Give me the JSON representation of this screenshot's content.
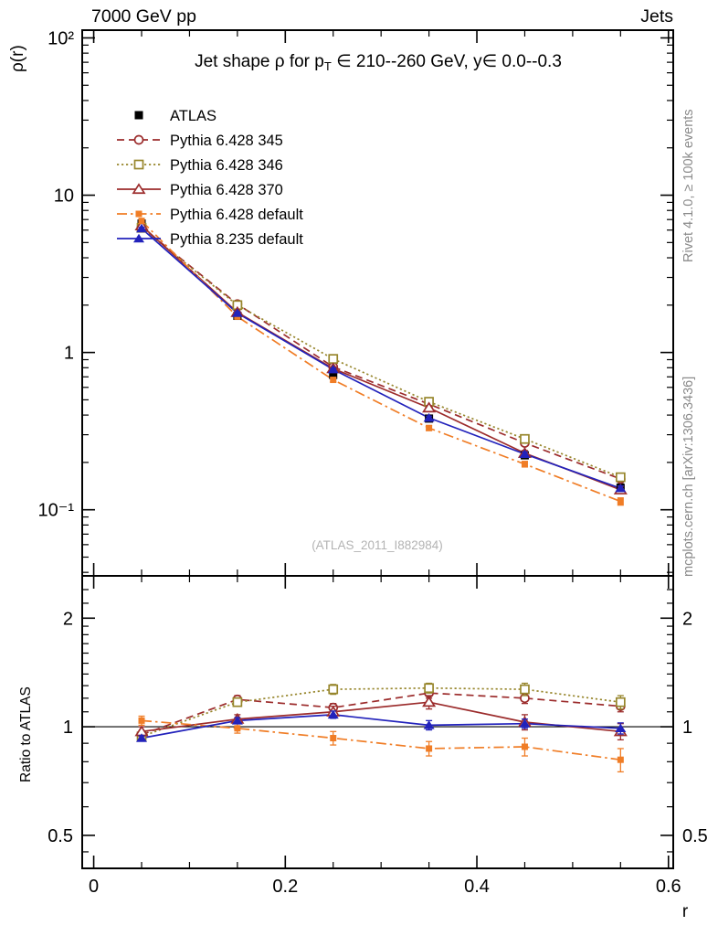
{
  "header": {
    "left": "7000 GeV pp",
    "right": "Jets"
  },
  "side_notes": {
    "rivet": "Rivet 4.1.0, ≥ 100k events",
    "mcplots": "mcplots.cern.ch [arXiv:1306.3436]"
  },
  "watermark": "(ATLAS_2011_I882984)",
  "chart_data": {
    "type": "line",
    "title": {
      "pre": "Jet shape ρ for p",
      "sub": "T",
      "post": " ∈ 210--260 GeV, y∈ 0.0--0.3"
    },
    "xlabel": "r",
    "ylabel_top": "ρ(r)",
    "ylabel_bottom": "Ratio to ATLAS",
    "x_range": [
      -0.012,
      0.605
    ],
    "y_range_top": [
      0.038,
      112
    ],
    "y_range_bottom": [
      0.405,
      2.62
    ],
    "x_ticks": [
      {
        "v": 0,
        "label": "0"
      },
      {
        "v": 0.2,
        "label": "0.2"
      },
      {
        "v": 0.4,
        "label": "0.4"
      },
      {
        "v": 0.6,
        "label": "0.6"
      }
    ],
    "x_minor_step": 0.05,
    "y_ticks_top": [
      {
        "v": 100,
        "label": "10²"
      },
      {
        "v": 10,
        "label": "10"
      },
      {
        "v": 1,
        "label": "1"
      },
      {
        "v": 0.1,
        "label": "10⁻¹"
      }
    ],
    "y_ticks_bottom": [
      {
        "v": 2,
        "label": "2"
      },
      {
        "v": 1,
        "label": "1"
      },
      {
        "v": 0.5,
        "label": "0.5"
      }
    ],
    "y_minor_bottom": [
      0.45,
      0.6,
      0.7,
      0.8,
      0.9,
      1.1,
      1.2,
      1.3,
      1.4,
      1.5,
      1.6,
      1.7,
      1.8,
      1.9,
      2.2,
      2.4
    ],
    "x": [
      0.05,
      0.15,
      0.25,
      0.35,
      0.45,
      0.55
    ],
    "series": [
      {
        "name": "ATLAS",
        "color": "#000000",
        "marker": "square-filled",
        "size": 9,
        "line": "none",
        "values": [
          6.6,
          1.71,
          0.72,
          0.38,
          0.222,
          0.138
        ],
        "errors": [
          0.25,
          0.07,
          0.03,
          0.016,
          0.011,
          0.008
        ],
        "ratio": null,
        "ratio_err": null
      },
      {
        "name": "Pythia 6.428 345",
        "color": "#9c2c2c",
        "marker": "circle-open",
        "size": 9,
        "line": "dashed",
        "values": [
          6.27,
          2.03,
          0.81,
          0.47,
          0.266,
          0.157
        ],
        "errors": [
          0.12,
          0.04,
          0.02,
          0.013,
          0.009,
          0.007
        ],
        "ratio": [
          0.95,
          1.19,
          1.13,
          1.24,
          1.2,
          1.14
        ],
        "ratio_err": [
          0.02,
          0.03,
          0.03,
          0.04,
          0.04,
          0.04
        ]
      },
      {
        "name": "Pythia 6.428 346",
        "color": "#97862c",
        "marker": "square-open",
        "size": 9,
        "line": "dotted",
        "values": [
          6.2,
          2.0,
          0.91,
          0.486,
          0.282,
          0.161
        ],
        "errors": [
          0.12,
          0.04,
          0.02,
          0.013,
          0.009,
          0.007
        ],
        "ratio": [
          0.94,
          1.17,
          1.27,
          1.28,
          1.27,
          1.17
        ],
        "ratio_err": [
          0.02,
          0.03,
          0.04,
          0.04,
          0.05,
          0.05
        ]
      },
      {
        "name": "Pythia 6.428 370",
        "color": "#9c2c2c",
        "marker": "triangle-open",
        "size": 11,
        "line": "solid",
        "values": [
          6.4,
          1.8,
          0.79,
          0.445,
          0.229,
          0.134
        ],
        "errors": [
          0.12,
          0.04,
          0.02,
          0.013,
          0.009,
          0.007
        ],
        "ratio": [
          0.97,
          1.05,
          1.1,
          1.17,
          1.03,
          0.97
        ],
        "ratio_err": [
          0.03,
          0.03,
          0.04,
          0.05,
          0.05,
          0.05
        ]
      },
      {
        "name": "Pythia 6.428 default",
        "color": "#f07d26",
        "marker": "square-filled",
        "size": 7,
        "line": "dashdot",
        "values": [
          6.86,
          1.69,
          0.67,
          0.331,
          0.195,
          0.113
        ],
        "errors": [
          0.12,
          0.04,
          0.02,
          0.012,
          0.008,
          0.006
        ],
        "ratio": [
          1.04,
          0.99,
          0.93,
          0.87,
          0.88,
          0.81
        ],
        "ratio_err": [
          0.03,
          0.03,
          0.04,
          0.04,
          0.05,
          0.06
        ]
      },
      {
        "name": "Pythia 8.235 default",
        "color": "#2222bb",
        "marker": "triangle-filled",
        "size": 11,
        "line": "solid",
        "values": [
          6.14,
          1.78,
          0.78,
          0.384,
          0.226,
          0.137
        ],
        "errors": [
          0.1,
          0.03,
          0.015,
          0.01,
          0.007,
          0.005
        ],
        "ratio": [
          0.93,
          1.04,
          1.08,
          1.01,
          1.02,
          0.99
        ],
        "ratio_err": [
          0.015,
          0.02,
          0.025,
          0.03,
          0.03,
          0.035
        ]
      }
    ]
  }
}
